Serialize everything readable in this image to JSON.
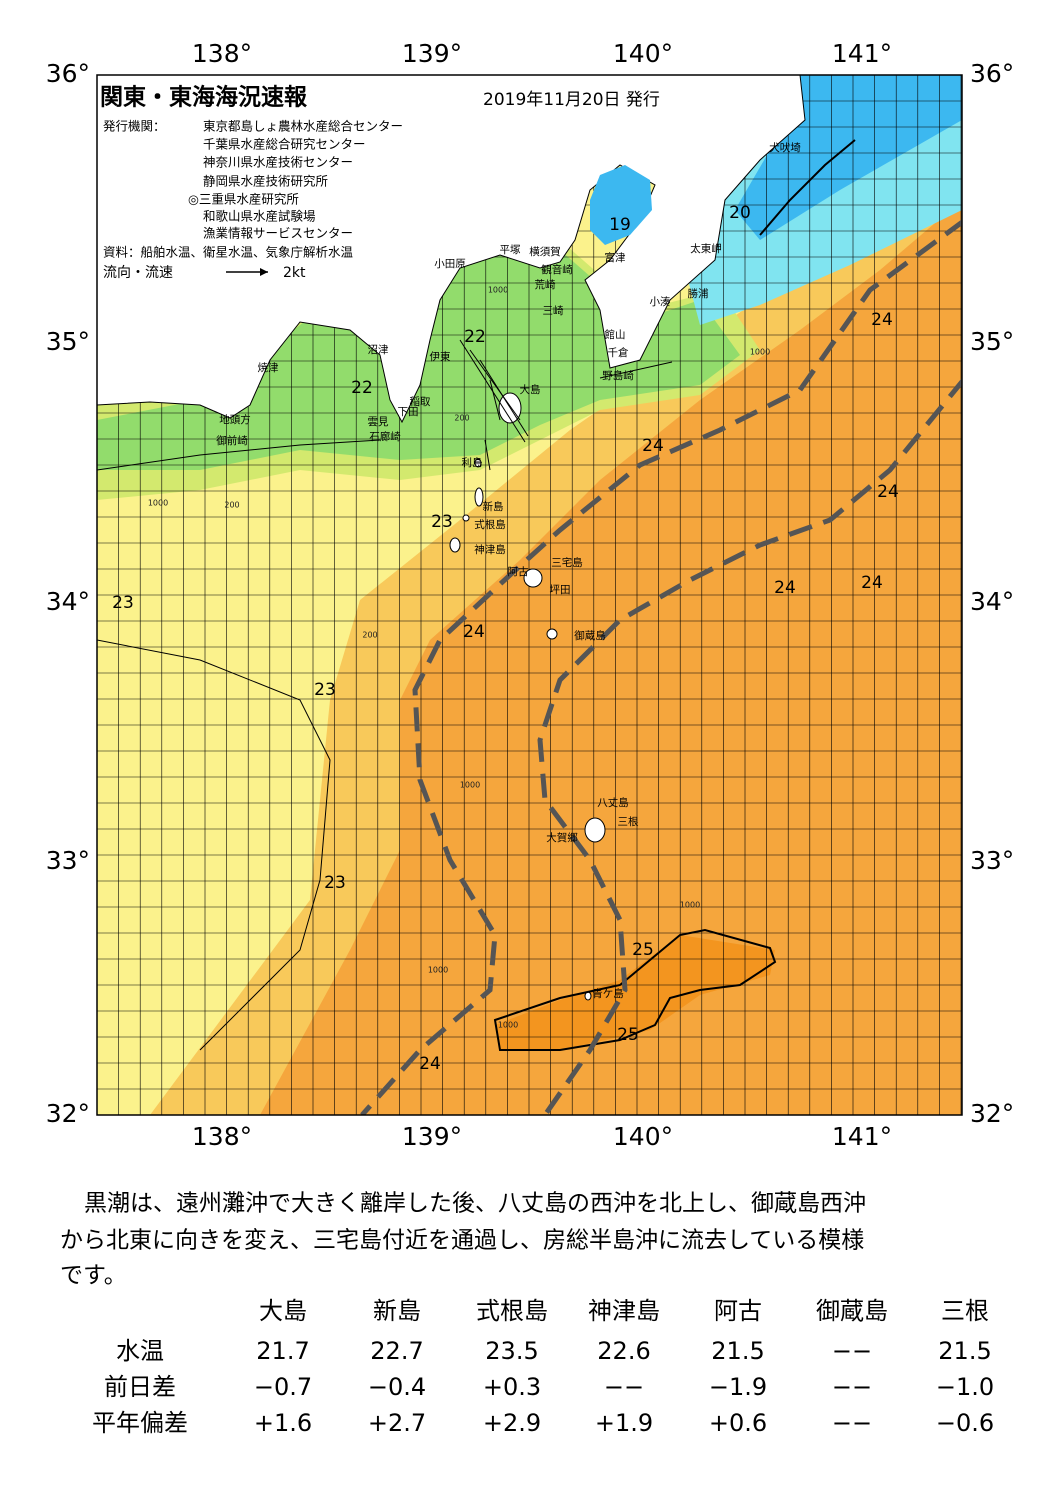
{
  "header": {
    "title": "関東・東海海況速報",
    "date": "2019年11月20日 発行",
    "issuer_label": "発行機関：",
    "issuers": [
      "東京都島しょ農林水産総合センター",
      "千葉県水産総合研究センター",
      "神奈川県水産技術センター",
      "静岡県水産技術研究所",
      "◎三重県水産研究所",
      "和歌山県水産試験場",
      "漁業情報サービスセンター"
    ],
    "source": "資料：船舶水温、衛星水温、気象庁解析水温",
    "legend_label": "流向・流速",
    "legend_scale": "2kt"
  },
  "map": {
    "lon_labels": [
      "138°",
      "139°",
      "140°",
      "141°"
    ],
    "lat_labels": [
      "36°",
      "35°",
      "34°",
      "33°",
      "32°"
    ],
    "places": [
      "犬吠埼",
      "太東岬",
      "勝浦",
      "小湊",
      "館山",
      "千倉",
      "野島崎",
      "富津",
      "横須賀",
      "観音崎",
      "荒崎",
      "三崎",
      "平塚",
      "小田原",
      "沼津",
      "伊東",
      "大島",
      "稲取",
      "下田",
      "雲見",
      "石廊崎",
      "焼津",
      "地頭方",
      "御前崎",
      "利島",
      "新島",
      "式根島",
      "神津島",
      "三宅島",
      "阿古",
      "坪田",
      "御蔵島",
      "八丈島",
      "三根",
      "大賀郷",
      "青ケ島"
    ],
    "contour_labels": [
      "22",
      "22",
      "19",
      "20",
      "24",
      "24",
      "24",
      "23",
      "24",
      "24",
      "23",
      "24",
      "23",
      "23",
      "25",
      "25",
      "24"
    ],
    "depth_labels": [
      "1000",
      "200",
      "1000",
      "1000",
      "200",
      "1000",
      "1000",
      "1000",
      "1000",
      "200"
    ]
  },
  "description": [
    "黒潮は、遠州灘沖で大きく離岸した後、八丈島の西沖を北上し、御蔵島西沖",
    "から北東に向きを変え、三宅島付近を通過し、房総半島沖に流去している模様",
    "です。"
  ],
  "table": {
    "columns": [
      "大島",
      "新島",
      "式根島",
      "神津島",
      "阿古",
      "御蔵島",
      "三根"
    ],
    "rows": [
      {
        "label": "水温",
        "cells": [
          "21.7",
          "22.7",
          "23.5",
          "22.6",
          "21.5",
          "−−",
          "21.5"
        ]
      },
      {
        "label": "前日差",
        "cells": [
          "−0.7",
          "−0.4",
          "+0.3",
          "−−",
          "−1.9",
          "−−",
          "−1.0"
        ]
      },
      {
        "label": "平年偏差",
        "cells": [
          "+1.6",
          "+2.7",
          "+2.9",
          "+1.9",
          "+0.6",
          "−−",
          "−0.6"
        ]
      }
    ]
  }
}
